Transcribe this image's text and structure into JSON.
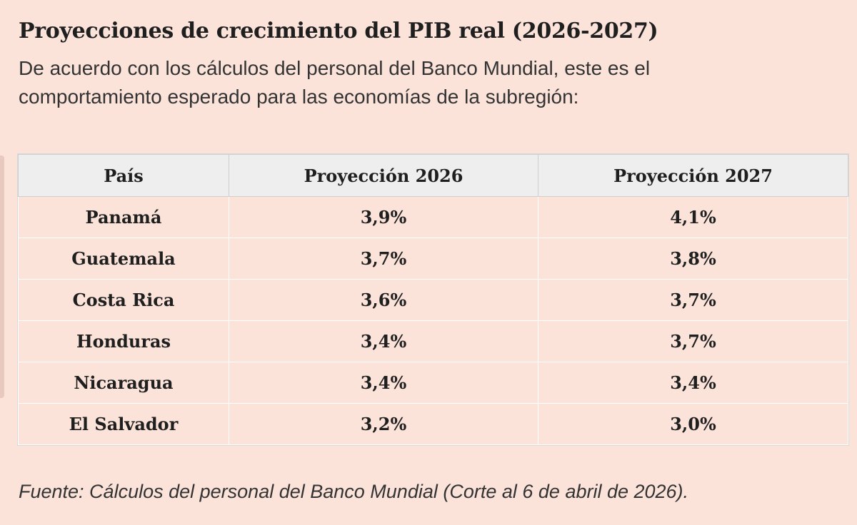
{
  "title": "Proyecciones de crecimiento del PIB real (2026-2027)",
  "intro": "De acuerdo con los cálculos del personal del Banco Mundial, este es el comportamiento esperado para las economías de la subregión:",
  "table": {
    "headers": [
      "País",
      "Proyección 2026",
      "Proyección 2027"
    ],
    "rows": [
      [
        "Panamá",
        "3,9%",
        "4,1%"
      ],
      [
        "Guatemala",
        "3,7%",
        "3,8%"
      ],
      [
        "Costa Rica",
        "3,6%",
        "3,7%"
      ],
      [
        "Honduras",
        "3,4%",
        "3,7%"
      ],
      [
        "Nicaragua",
        "3,4%",
        "3,4%"
      ],
      [
        "El Salvador",
        "3,2%",
        "3,0%"
      ]
    ]
  },
  "source": "Fuente: Cálculos del personal del Banco Mundial (Corte al 6 de abril de 2026).",
  "colors": {
    "background": "#fbe3da",
    "header_bg": "#eeeeee"
  }
}
